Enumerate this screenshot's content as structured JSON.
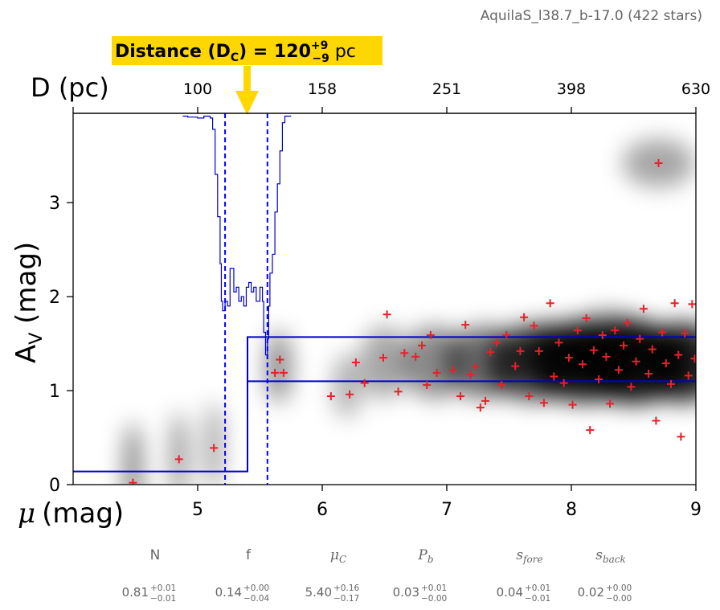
{
  "chart_data": {
    "type": "scatter",
    "title": "AquilaS_l38.7_b-17.0 (422 stars)",
    "annotation": {
      "label": "Distance (D",
      "sub": "C",
      "eq": ") = 120",
      "sup": "+9",
      "subm": "−9",
      "unit": " pc",
      "color": "#FFD700"
    },
    "xlabel_main": "(mag)",
    "xlabel_symbol": "μ",
    "xlabel_top": "D (pc)",
    "ylabel_main": "A",
    "ylabel_sub": "V",
    "ylabel_unit": " (mag)",
    "xlim": [
      4.0,
      9.0
    ],
    "ylim": [
      0,
      3.95
    ],
    "x_ticks": [
      5,
      6,
      7,
      8,
      9
    ],
    "x_tick_labels": [
      "5",
      "6",
      "7",
      "8",
      "9"
    ],
    "y_ticks": [
      0,
      1,
      2,
      3
    ],
    "y_tick_labels": [
      "0",
      "1",
      "2",
      "3"
    ],
    "top_ticks_mu": [
      5,
      6,
      7,
      8,
      9
    ],
    "top_tick_labels": [
      "100",
      "158",
      "251",
      "398",
      "630"
    ],
    "lines": {
      "mu_c": 5.4,
      "mu_c_low": 5.22,
      "mu_c_high": 5.56,
      "av_fore": 0.14,
      "av_back_low": 1.1,
      "av_back_high": 1.57
    },
    "colors": {
      "model": "#0000CC",
      "dashed": "#0000FF",
      "points": "#E8202A",
      "arrow": "#FFD700",
      "hist": "#0000CC"
    },
    "stars": [
      [
        4.48,
        0.02
      ],
      [
        4.85,
        0.27
      ],
      [
        5.13,
        0.39
      ],
      [
        5.62,
        1.19
      ],
      [
        5.66,
        1.33
      ],
      [
        5.69,
        1.19
      ],
      [
        6.07,
        0.94
      ],
      [
        6.22,
        0.96
      ],
      [
        6.27,
        1.3
      ],
      [
        6.34,
        1.08
      ],
      [
        6.49,
        1.35
      ],
      [
        6.52,
        1.81
      ],
      [
        6.61,
        0.99
      ],
      [
        6.66,
        1.4
      ],
      [
        6.75,
        1.36
      ],
      [
        6.8,
        1.48
      ],
      [
        6.84,
        1.06
      ],
      [
        6.87,
        1.59
      ],
      [
        6.92,
        1.19
      ],
      [
        7.05,
        1.22
      ],
      [
        7.11,
        0.94
      ],
      [
        7.15,
        1.7
      ],
      [
        7.19,
        1.17
      ],
      [
        7.23,
        1.25
      ],
      [
        7.27,
        0.82
      ],
      [
        7.31,
        0.89
      ],
      [
        7.35,
        1.41
      ],
      [
        7.4,
        1.51
      ],
      [
        7.44,
        1.06
      ],
      [
        7.48,
        1.59
      ],
      [
        7.55,
        1.26
      ],
      [
        7.59,
        1.42
      ],
      [
        7.62,
        1.78
      ],
      [
        7.66,
        0.94
      ],
      [
        7.7,
        1.69
      ],
      [
        7.74,
        1.42
      ],
      [
        7.78,
        0.87
      ],
      [
        7.83,
        1.93
      ],
      [
        7.86,
        1.15
      ],
      [
        7.9,
        1.51
      ],
      [
        7.94,
        1.08
      ],
      [
        7.98,
        1.35
      ],
      [
        8.01,
        0.85
      ],
      [
        8.05,
        1.64
      ],
      [
        8.09,
        1.28
      ],
      [
        8.12,
        1.77
      ],
      [
        8.15,
        0.58
      ],
      [
        8.18,
        1.43
      ],
      [
        8.22,
        1.12
      ],
      [
        8.25,
        1.59
      ],
      [
        8.28,
        1.36
      ],
      [
        8.31,
        0.86
      ],
      [
        8.35,
        1.64
      ],
      [
        8.38,
        1.22
      ],
      [
        8.42,
        1.48
      ],
      [
        8.45,
        1.72
      ],
      [
        8.48,
        1.04
      ],
      [
        8.52,
        1.31
      ],
      [
        8.55,
        1.55
      ],
      [
        8.58,
        1.87
      ],
      [
        8.62,
        1.18
      ],
      [
        8.65,
        1.44
      ],
      [
        8.68,
        0.68
      ],
      [
        8.7,
        3.42
      ],
      [
        8.73,
        1.62
      ],
      [
        8.76,
        1.29
      ],
      [
        8.8,
        1.07
      ],
      [
        8.83,
        1.93
      ],
      [
        8.86,
        1.38
      ],
      [
        8.88,
        0.51
      ],
      [
        8.91,
        1.61
      ],
      [
        8.94,
        1.16
      ],
      [
        8.97,
        1.92
      ],
      [
        8.99,
        1.34
      ]
    ],
    "params": [
      {
        "name": "N",
        "value": "0.81",
        "plus": "+0.01",
        "minus": "−0.01"
      },
      {
        "name": "f",
        "value": "0.14",
        "plus": "+0.00",
        "minus": "−0.04"
      },
      {
        "name": "μ",
        "sub": "C",
        "value": "5.40",
        "plus": "+0.16",
        "minus": "−0.17"
      },
      {
        "name": "P",
        "sub": "b",
        "value": "0.03",
        "plus": "+0.01",
        "minus": "−0.00"
      },
      {
        "name": "s",
        "sub": "fore",
        "value": "0.04",
        "plus": "+0.01",
        "minus": "−0.01"
      },
      {
        "name": "s",
        "sub": "back",
        "value": "0.02",
        "plus": "+0.00",
        "minus": "−0.00"
      }
    ]
  }
}
